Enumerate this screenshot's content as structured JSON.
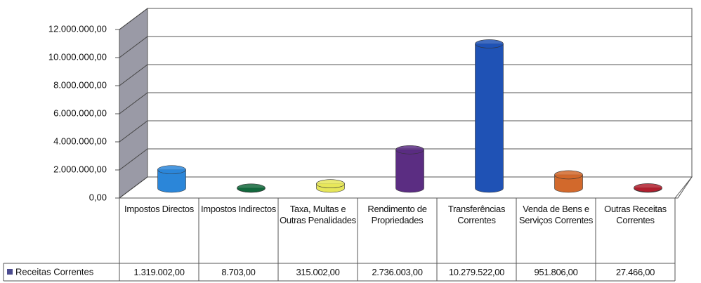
{
  "chart_data": {
    "type": "bar",
    "categories": [
      "Impostos Directos",
      "Impostos Indirectos",
      "Taxa, Multas e Outras Penalidades",
      "Rendimento de Propriedades",
      "Transferências Correntes",
      "Venda de Bens e Serviços Correntes",
      "Outras Receitas Correntes"
    ],
    "series": [
      {
        "name": "Receitas Correntes",
        "color": "#4b4b8f",
        "values": [
          1319002,
          8703,
          315002,
          2736003,
          10279522,
          951806,
          27466
        ],
        "value_labels": [
          "1.319.002,00",
          "8.703,00",
          "315.002,00",
          "2.736.003,00",
          "10.279.522,00",
          "951.806,00",
          "27.466,00"
        ],
        "colors": [
          "#2b86d9",
          "#13683c",
          "#e6e65a",
          "#5b2d82",
          "#1f52b5",
          "#d2692c",
          "#b0202e"
        ]
      }
    ],
    "ylim": [
      0,
      12000000
    ],
    "yticks": [
      {
        "value": 0,
        "label": "0,00"
      },
      {
        "value": 2000000,
        "label": "2.000.000,00"
      },
      {
        "value": 4000000,
        "label": "4.000.000,00"
      },
      {
        "value": 6000000,
        "label": "6.000.000,00"
      },
      {
        "value": 8000000,
        "label": "8.000.000,00"
      },
      {
        "value": 10000000,
        "label": "10.000.000,00"
      },
      {
        "value": 12000000,
        "label": "12.000.000,00"
      }
    ],
    "grid": true
  }
}
